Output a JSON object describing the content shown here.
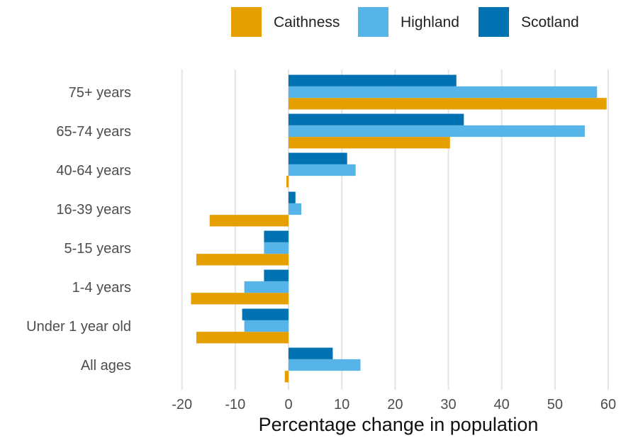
{
  "chart_data": {
    "type": "bar",
    "orientation": "horizontal",
    "title": "",
    "xlabel": "Percentage change in population",
    "ylabel": "",
    "xlim": [
      -22,
      61
    ],
    "xticks": [
      -20,
      -10,
      0,
      10,
      20,
      30,
      40,
      50,
      60
    ],
    "xtick_labels": [
      "-20",
      "-10",
      "0",
      "10",
      "20",
      "30",
      "40",
      "50",
      "60"
    ],
    "grid": true,
    "legend_position": "top",
    "categories": [
      "75+ years",
      "65-74 years",
      "40-64 years",
      "16-39 years",
      "5-15 years",
      "1-4 years",
      "Under 1 year old",
      "All ages"
    ],
    "series": [
      {
        "name": "Caithness",
        "color": "#E69F00",
        "values": [
          59.7,
          30.3,
          -0.4,
          -14.8,
          -17.3,
          -18.3,
          -17.3,
          -0.7
        ]
      },
      {
        "name": "Highland",
        "color": "#56B4E9",
        "values": [
          57.9,
          55.6,
          12.6,
          2.4,
          -4.6,
          -8.3,
          -8.3,
          13.5
        ]
      },
      {
        "name": "Scotland",
        "color": "#0072B2",
        "values": [
          31.5,
          32.9,
          11.0,
          1.3,
          -4.6,
          -4.6,
          -8.7,
          8.3
        ]
      }
    ]
  }
}
